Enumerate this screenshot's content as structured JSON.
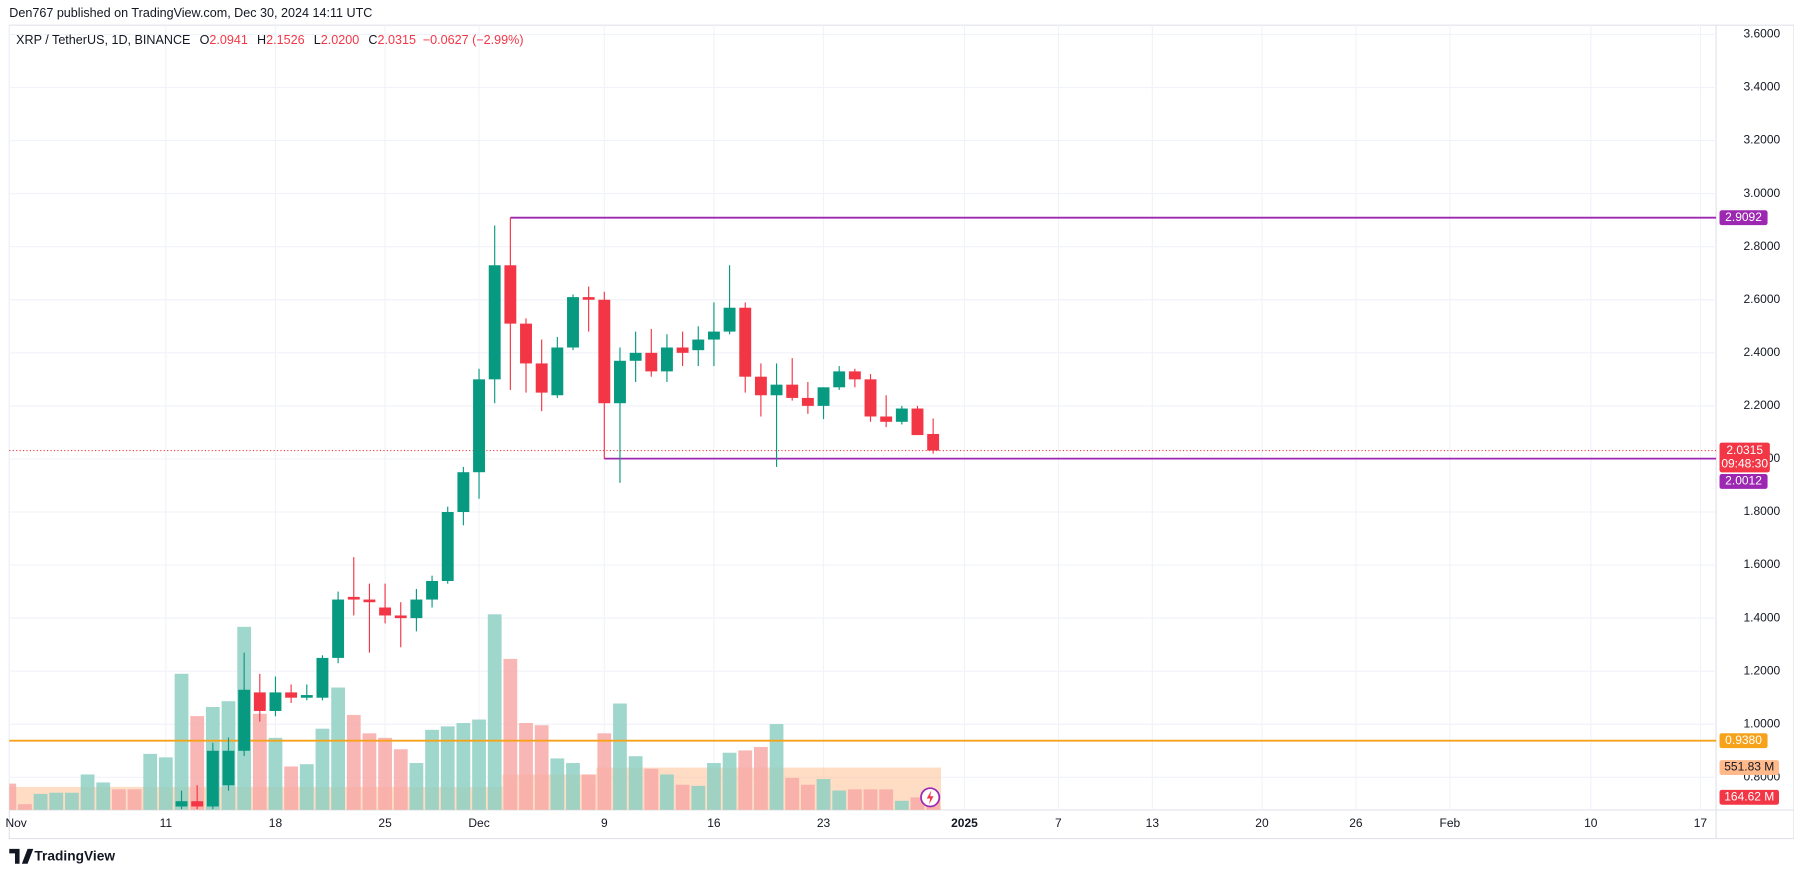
{
  "header": "Den767 published on TradingView.com, Dec 30, 2024 14:11 UTC",
  "footer": "TradingView",
  "chart_data": {
    "type": "candlestick",
    "symbol": "XRP / TetherUS, 1D, BINANCE",
    "legend_values": [
      {
        "key": "O",
        "value": "2.0941"
      },
      {
        "key": "H",
        "value": "2.1526"
      },
      {
        "key": "L",
        "value": "2.0200"
      },
      {
        "key": "C",
        "value": "2.0315"
      }
    ],
    "change": "−0.0627 (−2.99%)",
    "x": [
      "2024-11-01",
      "2024-11-02",
      "2024-11-03",
      "2024-11-04",
      "2024-11-05",
      "2024-11-06",
      "2024-11-07",
      "2024-11-08",
      "2024-11-09",
      "2024-11-10",
      "2024-11-11",
      "2024-11-12",
      "2024-11-13",
      "2024-11-14",
      "2024-11-15",
      "2024-11-16",
      "2024-11-17",
      "2024-11-18",
      "2024-11-19",
      "2024-11-20",
      "2024-11-21",
      "2024-11-22",
      "2024-11-23",
      "2024-11-24",
      "2024-11-25",
      "2024-11-26",
      "2024-11-27",
      "2024-11-28",
      "2024-11-29",
      "2024-11-30",
      "2024-12-01",
      "2024-12-02",
      "2024-12-03",
      "2024-12-04",
      "2024-12-05",
      "2024-12-06",
      "2024-12-07",
      "2024-12-08",
      "2024-12-09",
      "2024-12-10",
      "2024-12-11",
      "2024-12-12",
      "2024-12-13",
      "2024-12-14",
      "2024-12-15",
      "2024-12-16",
      "2024-12-17",
      "2024-12-18",
      "2024-12-19",
      "2024-12-20",
      "2024-12-21",
      "2024-12-22",
      "2024-12-23",
      "2024-12-24",
      "2024-12-25",
      "2024-12-26",
      "2024-12-27",
      "2024-12-28",
      "2024-12-29",
      "2024-12-30"
    ],
    "open": [
      null,
      null,
      null,
      null,
      null,
      null,
      null,
      null,
      null,
      null,
      null,
      0.69,
      0.71,
      0.69,
      0.77,
      0.9,
      1.12,
      1.05,
      1.12,
      1.1,
      1.1,
      1.25,
      1.48,
      1.47,
      1.44,
      1.41,
      1.4,
      1.47,
      1.54,
      1.8,
      1.95,
      2.3,
      2.73,
      2.51,
      2.36,
      2.24,
      2.42,
      2.61,
      2.6,
      2.21,
      2.37,
      2.4,
      2.33,
      2.42,
      2.41,
      2.45,
      2.48,
      2.57,
      2.31,
      2.24,
      2.28,
      2.23,
      2.2,
      2.27,
      2.33,
      2.3,
      2.16,
      2.14,
      2.19,
      2.0941
    ],
    "high": [
      null,
      null,
      null,
      null,
      null,
      null,
      null,
      null,
      null,
      null,
      null,
      0.75,
      0.77,
      0.93,
      0.95,
      1.27,
      1.19,
      1.18,
      1.15,
      1.15,
      1.26,
      1.5,
      1.63,
      1.53,
      1.53,
      1.46,
      1.51,
      1.56,
      1.82,
      1.97,
      2.34,
      2.88,
      2.91,
      2.53,
      2.45,
      2.46,
      2.62,
      2.65,
      2.63,
      2.42,
      2.48,
      2.49,
      2.47,
      2.48,
      2.5,
      2.59,
      2.73,
      2.59,
      2.36,
      2.36,
      2.38,
      2.29,
      2.27,
      2.35,
      2.34,
      2.32,
      2.24,
      2.2,
      2.2,
      2.1526
    ],
    "low": [
      null,
      null,
      null,
      null,
      null,
      null,
      null,
      null,
      null,
      null,
      null,
      0.68,
      0.68,
      0.68,
      0.75,
      0.88,
      1.01,
      1.03,
      1.08,
      1.09,
      1.09,
      1.23,
      1.41,
      1.27,
      1.38,
      1.29,
      1.35,
      1.44,
      1.53,
      1.75,
      1.85,
      2.21,
      2.26,
      2.25,
      2.18,
      2.23,
      2.41,
      2.48,
      2.0,
      1.91,
      2.29,
      2.31,
      2.29,
      2.35,
      2.35,
      2.35,
      2.47,
      2.25,
      2.16,
      1.97,
      2.22,
      2.17,
      2.15,
      2.26,
      2.27,
      2.14,
      2.12,
      2.13,
      2.09,
      2.02
    ],
    "close": [
      null,
      null,
      null,
      null,
      null,
      null,
      null,
      null,
      null,
      null,
      null,
      0.71,
      0.69,
      0.9,
      0.9,
      1.13,
      1.05,
      1.12,
      1.1,
      1.11,
      1.25,
      1.47,
      1.47,
      1.46,
      1.41,
      1.4,
      1.47,
      1.54,
      1.8,
      1.95,
      2.3,
      2.73,
      2.51,
      2.36,
      2.25,
      2.42,
      2.61,
      2.6,
      2.21,
      2.37,
      2.4,
      2.33,
      2.42,
      2.4,
      2.45,
      2.48,
      2.57,
      2.31,
      2.24,
      2.28,
      2.23,
      2.2,
      2.27,
      2.33,
      2.3,
      2.16,
      2.14,
      2.19,
      2.09,
      2.0315
    ],
    "volume": [
      343,
      75,
      209,
      224,
      224,
      462,
      358,
      268,
      268,
      730,
      685,
      1773,
      1222,
      1341,
      1416,
      2384,
      1252,
      939,
      566,
      596,
      1058,
      1594,
      1237,
      998,
      939,
      790,
      611,
      1043,
      1088,
      1132,
      1177,
      2548,
      1967,
      1132,
      1103,
      671,
      611,
      462,
      998,
      1386,
      700,
      536,
      462,
      328,
      313,
      611,
      745,
      775,
      820,
      1118,
      417,
      328,
      402,
      253,
      268,
      268,
      268,
      119,
      164,
      164.62
    ],
    "volume_up": [
      false,
      false,
      true,
      true,
      true,
      true,
      true,
      false,
      false,
      true,
      true,
      true,
      false,
      true,
      true,
      true,
      false,
      true,
      false,
      true,
      true,
      true,
      false,
      false,
      false,
      false,
      true,
      true,
      true,
      true,
      true,
      true,
      false,
      false,
      false,
      true,
      true,
      false,
      false,
      true,
      true,
      false,
      true,
      false,
      true,
      true,
      true,
      false,
      false,
      true,
      false,
      false,
      true,
      true,
      false,
      false,
      false,
      true,
      false,
      false
    ],
    "volume_ma": [
      300,
      300,
      300,
      300,
      300,
      300,
      300,
      300,
      300,
      300,
      300,
      300,
      300,
      300,
      300,
      300,
      300,
      300,
      300,
      300,
      300,
      300,
      300,
      300,
      300,
      300,
      300,
      300,
      300,
      300,
      300,
      300,
      462,
      462,
      462,
      462,
      462,
      462,
      551.83,
      551.83,
      551.83,
      551.83,
      551.83,
      551.83,
      551.83,
      551.83,
      551.83,
      551.83,
      551.83,
      551.83,
      551.83,
      551.83,
      551.83,
      551.83,
      551.83,
      551.83,
      551.83,
      551.83,
      551.83,
      551.83
    ],
    "volume_last_label": "164.62 M",
    "volume_ma_last_label": "551.83 M",
    "volume_ylim": [
      0,
      10220
    ],
    "xlim": [
      "2024-11-01",
      "2025-02-18"
    ],
    "xticks": [
      {
        "value": "2024-11-01",
        "label": "Nov"
      },
      {
        "value": "2024-11-11",
        "label": "11"
      },
      {
        "value": "2024-11-18",
        "label": "18"
      },
      {
        "value": "2024-11-25",
        "label": "25"
      },
      {
        "value": "2024-12-01",
        "label": "Dec"
      },
      {
        "value": "2024-12-09",
        "label": "9"
      },
      {
        "value": "2024-12-16",
        "label": "16"
      },
      {
        "value": "2024-12-23",
        "label": "23"
      },
      {
        "value": "2025-01-01",
        "label": "2025"
      },
      {
        "value": "2025-01-07",
        "label": "7"
      },
      {
        "value": "2025-01-13",
        "label": "13"
      },
      {
        "value": "2025-01-20",
        "label": "20"
      },
      {
        "value": "2025-01-26",
        "label": "26"
      },
      {
        "value": "2025-02-01",
        "label": "Feb"
      },
      {
        "value": "2025-02-10",
        "label": "10"
      },
      {
        "value": "2025-02-17",
        "label": "17"
      }
    ],
    "ylim": [
      0.677,
      3.635
    ],
    "yticks": [
      {
        "value": 0.8,
        "label": "0.8000"
      },
      {
        "value": 1.0,
        "label": "1.0000"
      },
      {
        "value": 1.2,
        "label": "1.2000"
      },
      {
        "value": 1.4,
        "label": "1.4000"
      },
      {
        "value": 1.6,
        "label": "1.6000"
      },
      {
        "value": 1.8,
        "label": "1.8000"
      },
      {
        "value": 2.0,
        "label": "2.0000"
      },
      {
        "value": 2.2,
        "label": "2.2000"
      },
      {
        "value": 2.4,
        "label": "2.4000"
      },
      {
        "value": 2.6,
        "label": "2.6000"
      },
      {
        "value": 2.8,
        "label": "2.8000"
      },
      {
        "value": 3.0,
        "label": "3.0000"
      },
      {
        "value": 3.2,
        "label": "3.2000"
      },
      {
        "value": 3.4,
        "label": "3.4000"
      },
      {
        "value": 3.6,
        "label": "3.6000"
      }
    ],
    "grid": true,
    "up_color": "#089981",
    "down_color": "#f23645",
    "volume_up_color": "#8fd0c4",
    "volume_down_color": "#f7a9a7",
    "volume_ma_color": "#ffb98a",
    "levels": [
      {
        "value": 2.9092,
        "label": "2.9092",
        "color": "#9c27b0",
        "start": "2024-12-03"
      },
      {
        "value": 2.0012,
        "label": "2.0012",
        "color": "#9c27b0",
        "start": "2024-12-09"
      },
      {
        "value": 0.938,
        "label": "0.9380",
        "color": "#f7a21b"
      }
    ],
    "last_price": {
      "value": 2.0315,
      "label": "2.0315",
      "countdown": "09:48:30"
    }
  }
}
